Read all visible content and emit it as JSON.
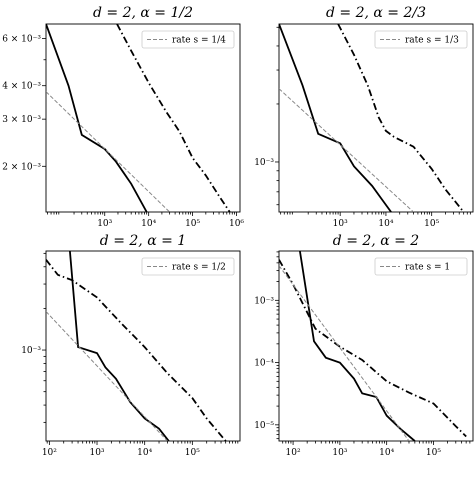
{
  "chart_data": [
    {
      "type": "line",
      "title": "d = 2, α = 1/2",
      "xscale": "log",
      "yscale": "log",
      "xlim": [
        46,
        1200000
      ],
      "ylim": [
        0.00135,
        0.0068
      ],
      "xticks": [
        {
          "v": 1000,
          "label": "10³"
        },
        {
          "v": 10000,
          "label": "10⁴"
        },
        {
          "v": 100000,
          "label": "10⁵"
        },
        {
          "v": 1000000,
          "label": "10⁶"
        }
      ],
      "yticks": [
        {
          "v": 0.006,
          "label": "6 × 10⁻³"
        },
        {
          "v": 0.004,
          "label": "4 × 10⁻³"
        },
        {
          "v": 0.003,
          "label": "3 × 10⁻³"
        },
        {
          "v": 0.002,
          "label": "2 × 10⁻³"
        }
      ],
      "legend": {
        "label": "rate s = 1/4",
        "position": "top-right"
      },
      "series": [
        {
          "style": "solid",
          "x": [
            46,
            150,
            300,
            1000,
            1800,
            4000,
            9000
          ],
          "y": [
            0.0068,
            0.004,
            0.00262,
            0.00232,
            0.00208,
            0.00172,
            0.00135
          ]
        },
        {
          "style": "dashdot",
          "x": [
            1900,
            4000,
            10000,
            25000,
            50000,
            100000,
            200000,
            400000,
            700000
          ],
          "y": [
            0.0068,
            0.0054,
            0.0041,
            0.0032,
            0.0027,
            0.00215,
            0.00185,
            0.00155,
            0.00135
          ]
        },
        {
          "style": "rate",
          "x": [
            46,
            30000
          ],
          "y": [
            0.0038,
            0.00135
          ]
        }
      ]
    },
    {
      "type": "line",
      "title": "d = 2, α = 2/3",
      "xscale": "log",
      "yscale": "log",
      "xlim": [
        46,
        800000
      ],
      "ylim": [
        0.00055,
        0.0052
      ],
      "xticks": [
        {
          "v": 1000,
          "label": "10³"
        },
        {
          "v": 10000,
          "label": "10⁴"
        },
        {
          "v": 100000,
          "label": "10⁵"
        }
      ],
      "yticks": [
        {
          "v": 0.001,
          "label": "10⁻³"
        }
      ],
      "legend": {
        "label": "rate s = 1/3",
        "position": "top-right"
      },
      "series": [
        {
          "style": "solid",
          "x": [
            46,
            150,
            330,
            1000,
            2000,
            5000,
            13000
          ],
          "y": [
            0.0052,
            0.0025,
            0.0014,
            0.00125,
            0.00095,
            0.00075,
            0.00055
          ]
        },
        {
          "style": "dashdot",
          "x": [
            900,
            2000,
            4000,
            7000,
            10000,
            15000,
            40000,
            100000,
            200000,
            500000
          ],
          "y": [
            0.0052,
            0.0036,
            0.0025,
            0.0017,
            0.00145,
            0.00135,
            0.0012,
            0.00092,
            0.00072,
            0.00055
          ]
        },
        {
          "style": "rate",
          "x": [
            46,
            40000
          ],
          "y": [
            0.0024,
            0.00055
          ]
        }
      ]
    },
    {
      "type": "line",
      "title": "d = 2, α = 1",
      "xscale": "log",
      "yscale": "log",
      "xlim": [
        85,
        1000000
      ],
      "ylim": [
        0.00022,
        0.0052
      ],
      "xticks": [
        {
          "v": 100,
          "label": "10²"
        },
        {
          "v": 1000,
          "label": "10³"
        },
        {
          "v": 10000,
          "label": "10⁴"
        },
        {
          "v": 100000,
          "label": "10⁵"
        }
      ],
      "yticks": [
        {
          "v": 0.001,
          "label": "10⁻³"
        }
      ],
      "legend": {
        "label": "rate s = 1/2",
        "position": "top-right"
      },
      "series": [
        {
          "style": "solid",
          "x": [
            270,
            400,
            1000,
            1500,
            2500,
            5000,
            10000,
            20000,
            32000
          ],
          "y": [
            0.0052,
            0.00105,
            0.00095,
            0.00075,
            0.00062,
            0.00042,
            0.00032,
            0.00027,
            0.00022
          ]
        },
        {
          "style": "dashdot",
          "x": [
            85,
            150,
            300,
            1000,
            3000,
            10000,
            30000,
            100000,
            200000,
            500000
          ],
          "y": [
            0.0045,
            0.0035,
            0.0032,
            0.0024,
            0.0016,
            0.00105,
            0.00068,
            0.00045,
            0.00032,
            0.00022
          ]
        },
        {
          "style": "rate",
          "x": [
            85,
            30000
          ],
          "y": [
            0.0019,
            0.00022
          ]
        }
      ]
    },
    {
      "type": "line",
      "title": "d = 2, α = 2",
      "xscale": "log",
      "yscale": "log",
      "xlim": [
        50,
        700000
      ],
      "ylim": [
        5.5e-06,
        0.0062
      ],
      "xticks": [
        {
          "v": 100,
          "label": "10²"
        },
        {
          "v": 1000,
          "label": "10³"
        },
        {
          "v": 10000,
          "label": "10⁴"
        },
        {
          "v": 100000,
          "label": "10⁵"
        }
      ],
      "yticks": [
        {
          "v": 0.001,
          "label": "10⁻³"
        },
        {
          "v": 0.0001,
          "label": "10⁻⁴"
        },
        {
          "v": 1e-05,
          "label": "10⁻⁵"
        }
      ],
      "legend": {
        "label": "rate s = 1",
        "position": "top-right"
      },
      "series": [
        {
          "style": "solid",
          "x": [
            140,
            280,
            500,
            1000,
            2000,
            3000,
            6000,
            10000,
            20000,
            40000
          ],
          "y": [
            0.0062,
            0.00022,
            0.00012,
            0.0001,
            5.5e-05,
            3.2e-05,
            2.8e-05,
            1.4e-05,
            8.5e-06,
            5.5e-06
          ]
        },
        {
          "style": "dashdot",
          "x": [
            50,
            100,
            300,
            1000,
            3000,
            10000,
            30000,
            100000,
            300000,
            500000
          ],
          "y": [
            0.0045,
            0.0018,
            0.00035,
            0.00018,
            0.00011,
            5e-05,
            3.3e-05,
            2.2e-05,
            9.5e-06,
            6.5e-06
          ]
        },
        {
          "style": "rate",
          "x": [
            50,
            30000
          ],
          "y": [
            0.0036,
            5.5e-06
          ]
        }
      ]
    }
  ]
}
